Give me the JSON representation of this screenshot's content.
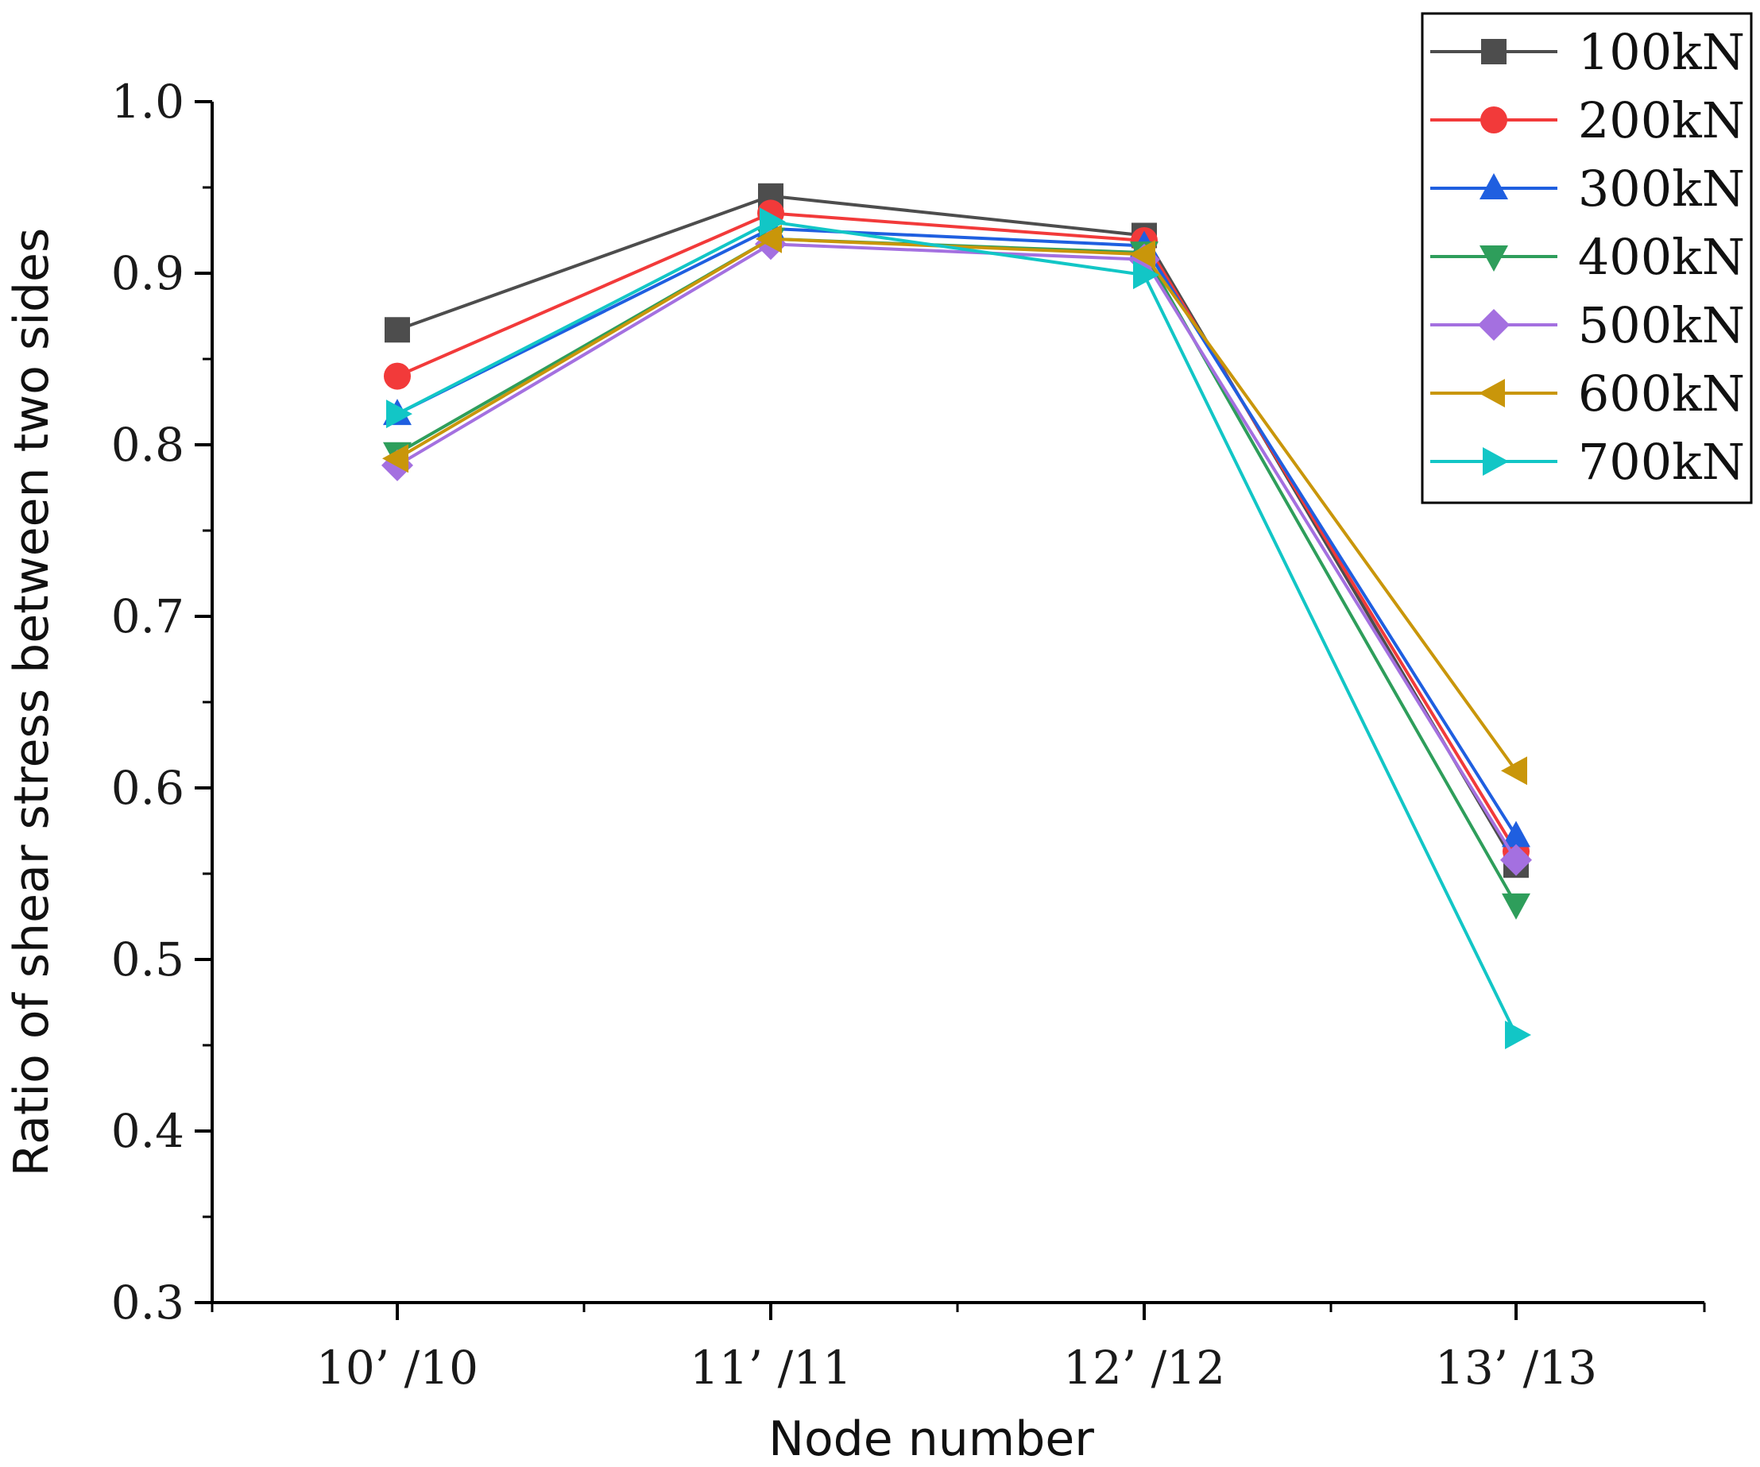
{
  "chart_data": {
    "type": "line",
    "title": "",
    "xlabel": "Node number",
    "ylabel": "Ratio of shear stress between two sides",
    "categories": [
      "10’ /10",
      "11’ /11",
      "12’ /12",
      "13’ /13"
    ],
    "ylim": [
      0.3,
      1.0
    ],
    "yticks": [
      "0.3",
      "0.4",
      "0.5",
      "0.6",
      "0.7",
      "0.8",
      "0.9",
      "1.0"
    ],
    "legend_position": "top-right",
    "series": [
      {
        "name": "100kN",
        "color": "#4d4d4d",
        "marker": "square",
        "values": [
          0.867,
          0.945,
          0.922,
          0.555
        ]
      },
      {
        "name": "200kN",
        "color": "#f23a3a",
        "marker": "circle",
        "values": [
          0.84,
          0.935,
          0.919,
          0.563
        ]
      },
      {
        "name": "300kN",
        "color": "#1f5fe0",
        "marker": "triangle-up",
        "values": [
          0.818,
          0.926,
          0.916,
          0.572
        ]
      },
      {
        "name": "400kN",
        "color": "#2e9e5b",
        "marker": "triangle-down",
        "values": [
          0.795,
          0.92,
          0.912,
          0.532
        ]
      },
      {
        "name": "500kN",
        "color": "#a470e0",
        "marker": "diamond",
        "values": [
          0.788,
          0.917,
          0.908,
          0.558
        ]
      },
      {
        "name": "600kN",
        "color": "#c9960a",
        "marker": "triangle-left",
        "values": [
          0.792,
          0.92,
          0.911,
          0.61
        ]
      },
      {
        "name": "700kN",
        "color": "#12c6c6",
        "marker": "triangle-right",
        "values": [
          0.818,
          0.93,
          0.899,
          0.456
        ]
      }
    ]
  }
}
